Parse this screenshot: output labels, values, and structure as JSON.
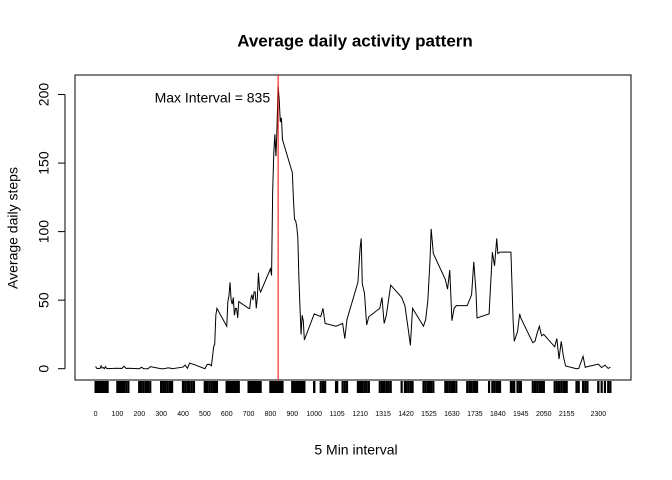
{
  "chart_data": {
    "type": "line",
    "title": "Average daily activity pattern",
    "x_label": "5 Min interval",
    "y_label": "Average daily steps",
    "annotation": "Max Interval = 835",
    "vline": 835,
    "vline_color": "#ff0000",
    "color": "#000000",
    "x": [
      0,
      5,
      10,
      15,
      20,
      25,
      30,
      35,
      40,
      45,
      50,
      55,
      100,
      110,
      115,
      120,
      125,
      130,
      140,
      150,
      200,
      210,
      220,
      230,
      240,
      250,
      300,
      310,
      320,
      330,
      340,
      350,
      400,
      410,
      420,
      430,
      440,
      450,
      500,
      510,
      520,
      530,
      540,
      545,
      550,
      555,
      600,
      605,
      610,
      615,
      620,
      625,
      630,
      635,
      640,
      645,
      650,
      655,
      700,
      705,
      710,
      715,
      720,
      725,
      730,
      735,
      740,
      745,
      750,
      755,
      800,
      805,
      810,
      815,
      820,
      825,
      830,
      835,
      840,
      845,
      850,
      855,
      900,
      905,
      910,
      915,
      920,
      925,
      930,
      935,
      940,
      945,
      950,
      955,
      1000,
      1030,
      1040,
      1050,
      1100,
      1130,
      1140,
      1150,
      1200,
      1210,
      1215,
      1220,
      1230,
      1240,
      1250,
      1300,
      1310,
      1320,
      1330,
      1340,
      1350,
      1400,
      1415,
      1430,
      1440,
      1450,
      1500,
      1510,
      1520,
      1530,
      1535,
      1545,
      1600,
      1610,
      1620,
      1630,
      1640,
      1650,
      1700,
      1710,
      1720,
      1730,
      1740,
      1745,
      1800,
      1815,
      1825,
      1835,
      1840,
      1850,
      1900,
      1910,
      1915,
      1930,
      1940,
      1945,
      2000,
      2010,
      2020,
      2030,
      2040,
      2050,
      2100,
      2110,
      2120,
      2130,
      2140,
      2150,
      2200,
      2210,
      2230,
      2240,
      2250,
      2300,
      2315,
      2330,
      2345,
      2355
    ],
    "values": [
      1.7,
      0.3,
      0.1,
      0.2,
      0.1,
      2.1,
      0.5,
      0.9,
      0,
      1.5,
      0.3,
      0.1,
      0.3,
      0.2,
      0.3,
      0,
      1.1,
      1.8,
      0.2,
      0.3,
      0,
      1.1,
      0,
      0,
      0,
      1.5,
      0,
      0,
      0.2,
      0.6,
      0.5,
      0,
      1.2,
      2.6,
      0.3,
      4.1,
      3.5,
      3.1,
      0,
      3,
      3.3,
      2.1,
      16,
      18,
      39,
      44,
      31,
      49,
      53,
      63,
      50,
      47,
      52,
      39,
      44,
      44,
      37,
      49,
      44,
      44,
      51,
      54,
      50,
      56,
      56,
      44,
      52,
      70,
      58,
      56,
      73,
      68,
      129,
      157,
      171,
      155,
      177,
      206,
      196,
      180,
      183,
      167,
      143,
      124,
      109,
      108,
      104,
      96,
      66,
      45,
      25,
      39,
      35,
      21,
      40,
      38,
      44,
      33,
      31,
      33,
      22,
      36,
      63,
      88,
      95,
      62,
      55,
      32,
      38,
      44,
      52,
      33,
      39,
      50,
      61,
      52,
      46,
      29,
      17,
      44,
      31,
      36,
      50,
      80,
      102,
      84,
      65,
      58,
      72,
      35,
      44,
      46,
      46,
      50,
      54,
      78,
      56,
      37,
      40,
      85,
      75,
      95,
      84,
      85,
      85,
      35,
      20,
      27,
      40,
      37,
      19,
      20,
      26,
      31,
      24,
      25,
      16,
      22,
      7,
      20,
      9,
      2,
      0,
      0.2,
      9,
      1,
      1.5,
      3.3,
      0.8,
      2.6,
      0.2,
      1.1
    ],
    "xlim": [
      -94.2,
      2449.2
    ],
    "ylim": [
      -8.24,
      214.24
    ],
    "xticks": [
      0,
      100,
      200,
      300,
      400,
      500,
      600,
      700,
      800,
      900,
      1000,
      1105,
      1210,
      1315,
      1420,
      1525,
      1630,
      1735,
      1840,
      1945,
      2050,
      2155,
      2300
    ],
    "yticks": [
      0,
      50,
      100,
      150,
      200
    ]
  }
}
